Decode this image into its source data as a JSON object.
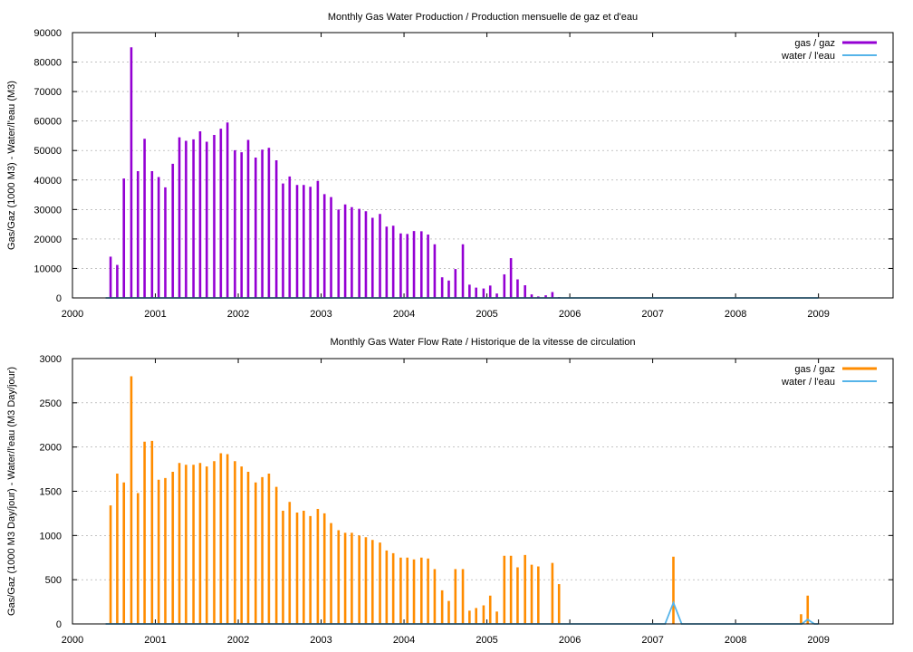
{
  "chart_data": [
    {
      "type": "bar",
      "title": "Monthly Gas  Water Production / Production mensuelle de gaz et d'eau",
      "ylabel": "Gas/Gaz (1000 M3) - Water/l'eau (M3)",
      "xlabel": "",
      "xlim": [
        2000,
        2009.9
      ],
      "ylim": [
        0,
        90000
      ],
      "x_ticks": [
        "2000",
        "2001",
        "2002",
        "2003",
        "2004",
        "2005",
        "2006",
        "2007",
        "2008",
        "2009"
      ],
      "y_ticks": [
        "0",
        "10000",
        "20000",
        "30000",
        "40000",
        "50000",
        "60000",
        "70000",
        "80000",
        "90000"
      ],
      "grid": true,
      "legend_position": "top-right",
      "series": [
        {
          "name": "gas / gaz",
          "color": "#9400d3",
          "style": "impulses",
          "x": [
            2000.46,
            2000.54,
            2000.62,
            2000.71,
            2000.79,
            2000.87,
            2000.96,
            2001.04,
            2001.12,
            2001.21,
            2001.29,
            2001.37,
            2001.46,
            2001.54,
            2001.62,
            2001.71,
            2001.79,
            2001.87,
            2001.96,
            2002.04,
            2002.12,
            2002.21,
            2002.29,
            2002.37,
            2002.46,
            2002.54,
            2002.62,
            2002.71,
            2002.79,
            2002.87,
            2002.96,
            2003.04,
            2003.12,
            2003.21,
            2003.29,
            2003.37,
            2003.46,
            2003.54,
            2003.62,
            2003.71,
            2003.79,
            2003.87,
            2003.96,
            2004.04,
            2004.12,
            2004.21,
            2004.29,
            2004.37,
            2004.46,
            2004.54,
            2004.62,
            2004.71,
            2004.79,
            2004.87,
            2004.96,
            2005.04,
            2005.12,
            2005.21,
            2005.29,
            2005.37,
            2005.46,
            2005.54,
            2005.62,
            2005.71,
            2005.79,
            2005.87
          ],
          "values": [
            14000,
            11200,
            40500,
            85000,
            43000,
            54000,
            43000,
            41000,
            37500,
            45500,
            54500,
            53300,
            53800,
            56500,
            53000,
            55300,
            57400,
            59500,
            50100,
            49400,
            53600,
            47600,
            50300,
            50900,
            46700,
            38800,
            41200,
            38300,
            38300,
            37700,
            39700,
            35200,
            34200,
            30000,
            31700,
            30800,
            30200,
            29400,
            27200,
            28500,
            24200,
            24500,
            21900,
            21700,
            22700,
            22600,
            21500,
            18200,
            7000,
            5900,
            9800,
            18200,
            4500,
            3500,
            3200,
            4200,
            1500,
            8000,
            13500,
            6300,
            4300,
            1200,
            500,
            900,
            2000,
            300
          ]
        },
        {
          "name": "water / l'eau",
          "color": "#56b4e9",
          "style": "line",
          "x": [
            2000.4,
            2000.46,
            2005.87,
            2005.95,
            2007.15,
            2007.25,
            2007.35,
            2008.7,
            2008.8,
            2008.9,
            2009.0
          ],
          "values": [
            0,
            0,
            0,
            0,
            0,
            0,
            0,
            0,
            0,
            0,
            0
          ]
        }
      ]
    },
    {
      "type": "bar",
      "title": "Monthly Gas  Water Flow Rate / Historique de la vitesse de circulation",
      "ylabel": "Gas/Gaz (1000 M3 Day/jour) - Water/l'eau (M3 Day/jour)",
      "xlabel": "",
      "xlim": [
        2000,
        2009.9
      ],
      "ylim": [
        0,
        3000
      ],
      "x_ticks": [
        "2000",
        "2001",
        "2002",
        "2003",
        "2004",
        "2005",
        "2006",
        "2007",
        "2008",
        "2009"
      ],
      "y_ticks": [
        "0",
        "500",
        "1000",
        "1500",
        "2000",
        "2500",
        "3000"
      ],
      "grid": true,
      "legend_position": "top-right",
      "series": [
        {
          "name": "gas / gaz",
          "color": "#ff8c00",
          "style": "impulses",
          "x": [
            2000.46,
            2000.54,
            2000.62,
            2000.71,
            2000.79,
            2000.87,
            2000.96,
            2001.04,
            2001.12,
            2001.21,
            2001.29,
            2001.37,
            2001.46,
            2001.54,
            2001.62,
            2001.71,
            2001.79,
            2001.87,
            2001.96,
            2002.04,
            2002.12,
            2002.21,
            2002.29,
            2002.37,
            2002.46,
            2002.54,
            2002.62,
            2002.71,
            2002.79,
            2002.87,
            2002.96,
            2003.04,
            2003.12,
            2003.21,
            2003.29,
            2003.37,
            2003.46,
            2003.54,
            2003.62,
            2003.71,
            2003.79,
            2003.87,
            2003.96,
            2004.04,
            2004.12,
            2004.21,
            2004.29,
            2004.37,
            2004.46,
            2004.54,
            2004.62,
            2004.71,
            2004.79,
            2004.87,
            2004.96,
            2005.04,
            2005.12,
            2005.21,
            2005.29,
            2005.37,
            2005.46,
            2005.54,
            2005.62,
            2005.79,
            2005.87,
            2005.96,
            2007.25,
            2008.79,
            2008.87
          ],
          "values": [
            1340,
            1700,
            1600,
            2800,
            1480,
            2060,
            2070,
            1630,
            1650,
            1720,
            1820,
            1800,
            1800,
            1820,
            1780,
            1840,
            1930,
            1920,
            1840,
            1780,
            1720,
            1600,
            1660,
            1700,
            1550,
            1280,
            1380,
            1260,
            1280,
            1220,
            1300,
            1250,
            1140,
            1060,
            1030,
            1030,
            1000,
            980,
            950,
            920,
            830,
            800,
            750,
            750,
            730,
            750,
            740,
            620,
            380,
            260,
            620,
            620,
            150,
            180,
            210,
            320,
            140,
            770,
            770,
            640,
            780,
            670,
            650,
            690,
            450,
            0,
            760,
            110,
            320
          ]
        },
        {
          "name": "water / l'eau",
          "color": "#56b4e9",
          "style": "line",
          "x": [
            2000.4,
            2000.46,
            2005.87,
            2005.95,
            2007.15,
            2007.25,
            2007.35,
            2008.7,
            2008.8,
            2008.87,
            2008.95,
            2009.0
          ],
          "values": [
            0,
            0,
            0,
            0,
            0,
            240,
            0,
            0,
            0,
            50,
            0,
            0
          ]
        }
      ]
    }
  ]
}
